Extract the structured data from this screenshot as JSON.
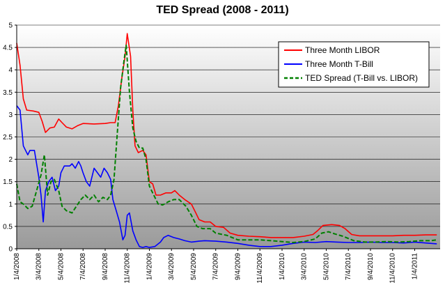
{
  "chart_data": {
    "type": "line",
    "title": "TED Spread (2008 - 2011)",
    "xlabel": "",
    "ylabel": "",
    "ylim": [
      0,
      5
    ],
    "yticks": [
      "0",
      "0.5",
      "1",
      "1.5",
      "2",
      "2.5",
      "3",
      "3.5",
      "4",
      "4.5",
      "5"
    ],
    "xticks": [
      "1/4/2008",
      "3/4/2008",
      "5/4/2008",
      "7/4/2008",
      "9/4/2008",
      "11/4/2008",
      "1/4/2009",
      "3/4/2009",
      "5/4/2009",
      "7/4/2009",
      "9/4/2009",
      "11/4/2009",
      "1/4/2010",
      "3/4/2010",
      "5/4/2010",
      "7/4/2010",
      "9/4/2010",
      "11/4/2010",
      "1/4/2011"
    ],
    "x_month_range": [
      0,
      38.3
    ],
    "grid": true,
    "legend_position": "top-right",
    "series": [
      {
        "name": "Three Month LIBOR",
        "color": "#ff0000",
        "style": "solid",
        "points": [
          [
            0.0,
            4.6
          ],
          [
            0.3,
            4.1
          ],
          [
            0.6,
            3.35
          ],
          [
            0.9,
            3.1
          ],
          [
            1.5,
            3.08
          ],
          [
            2.0,
            3.05
          ],
          [
            2.3,
            2.85
          ],
          [
            2.6,
            2.6
          ],
          [
            3.0,
            2.7
          ],
          [
            3.4,
            2.72
          ],
          [
            3.8,
            2.9
          ],
          [
            4.1,
            2.82
          ],
          [
            4.5,
            2.72
          ],
          [
            5.0,
            2.68
          ],
          [
            5.5,
            2.75
          ],
          [
            6.0,
            2.8
          ],
          [
            7.0,
            2.79
          ],
          [
            8.0,
            2.8
          ],
          [
            8.5,
            2.82
          ],
          [
            8.9,
            2.82
          ],
          [
            9.2,
            3.2
          ],
          [
            9.5,
            3.8
          ],
          [
            9.8,
            4.3
          ],
          [
            10.0,
            4.81
          ],
          [
            10.3,
            4.3
          ],
          [
            10.5,
            3.1
          ],
          [
            10.7,
            2.3
          ],
          [
            11.0,
            2.15
          ],
          [
            11.4,
            2.2
          ],
          [
            11.7,
            2.1
          ],
          [
            12.0,
            1.5
          ],
          [
            12.3,
            1.45
          ],
          [
            12.6,
            1.2
          ],
          [
            13.0,
            1.2
          ],
          [
            13.5,
            1.25
          ],
          [
            14.0,
            1.25
          ],
          [
            14.3,
            1.3
          ],
          [
            14.7,
            1.2
          ],
          [
            15.2,
            1.1
          ],
          [
            15.8,
            1.0
          ],
          [
            16.2,
            0.8
          ],
          [
            16.5,
            0.65
          ],
          [
            17.0,
            0.6
          ],
          [
            17.5,
            0.6
          ],
          [
            18.0,
            0.5
          ],
          [
            18.7,
            0.48
          ],
          [
            19.3,
            0.35
          ],
          [
            20.0,
            0.3
          ],
          [
            21.0,
            0.28
          ],
          [
            22.0,
            0.27
          ],
          [
            23.0,
            0.25
          ],
          [
            24.0,
            0.25
          ],
          [
            25.0,
            0.25
          ],
          [
            26.0,
            0.28
          ],
          [
            26.8,
            0.32
          ],
          [
            27.2,
            0.4
          ],
          [
            27.7,
            0.52
          ],
          [
            28.5,
            0.54
          ],
          [
            29.2,
            0.52
          ],
          [
            29.7,
            0.45
          ],
          [
            30.3,
            0.32
          ],
          [
            31.0,
            0.29
          ],
          [
            32.0,
            0.29
          ],
          [
            33.0,
            0.29
          ],
          [
            34.0,
            0.29
          ],
          [
            35.0,
            0.3
          ],
          [
            36.0,
            0.3
          ],
          [
            37.0,
            0.31
          ],
          [
            38.0,
            0.31
          ]
        ]
      },
      {
        "name": "Three Month T-Bill",
        "color": "#0000ff",
        "style": "solid",
        "points": [
          [
            0.0,
            3.2
          ],
          [
            0.3,
            3.1
          ],
          [
            0.6,
            2.3
          ],
          [
            0.8,
            2.2
          ],
          [
            1.0,
            2.1
          ],
          [
            1.2,
            2.2
          ],
          [
            1.6,
            2.2
          ],
          [
            2.0,
            1.6
          ],
          [
            2.2,
            1.2
          ],
          [
            2.4,
            0.6
          ],
          [
            2.6,
            1.3
          ],
          [
            2.9,
            1.5
          ],
          [
            3.2,
            1.6
          ],
          [
            3.5,
            1.3
          ],
          [
            3.8,
            1.4
          ],
          [
            4.0,
            1.7
          ],
          [
            4.3,
            1.85
          ],
          [
            4.8,
            1.85
          ],
          [
            5.0,
            1.9
          ],
          [
            5.3,
            1.8
          ],
          [
            5.6,
            1.95
          ],
          [
            5.8,
            1.85
          ],
          [
            6.0,
            1.7
          ],
          [
            6.3,
            1.5
          ],
          [
            6.6,
            1.4
          ],
          [
            7.0,
            1.8
          ],
          [
            7.3,
            1.7
          ],
          [
            7.6,
            1.6
          ],
          [
            7.9,
            1.8
          ],
          [
            8.2,
            1.7
          ],
          [
            8.5,
            1.55
          ],
          [
            8.7,
            1.1
          ],
          [
            9.0,
            0.85
          ],
          [
            9.3,
            0.6
          ],
          [
            9.6,
            0.2
          ],
          [
            9.8,
            0.3
          ],
          [
            10.0,
            0.75
          ],
          [
            10.2,
            0.8
          ],
          [
            10.5,
            0.4
          ],
          [
            10.8,
            0.2
          ],
          [
            11.1,
            0.05
          ],
          [
            11.4,
            0.03
          ],
          [
            11.7,
            0.05
          ],
          [
            12.0,
            0.03
          ],
          [
            12.5,
            0.05
          ],
          [
            13.0,
            0.15
          ],
          [
            13.3,
            0.25
          ],
          [
            13.7,
            0.3
          ],
          [
            14.2,
            0.25
          ],
          [
            14.7,
            0.22
          ],
          [
            15.2,
            0.18
          ],
          [
            15.8,
            0.15
          ],
          [
            16.5,
            0.17
          ],
          [
            17.0,
            0.18
          ],
          [
            18.0,
            0.17
          ],
          [
            19.0,
            0.15
          ],
          [
            20.0,
            0.12
          ],
          [
            21.0,
            0.08
          ],
          [
            22.0,
            0.05
          ],
          [
            23.0,
            0.05
          ],
          [
            24.0,
            0.08
          ],
          [
            25.0,
            0.12
          ],
          [
            26.0,
            0.15
          ],
          [
            27.0,
            0.14
          ],
          [
            28.0,
            0.16
          ],
          [
            29.0,
            0.15
          ],
          [
            30.0,
            0.14
          ],
          [
            31.0,
            0.14
          ],
          [
            32.0,
            0.15
          ],
          [
            33.0,
            0.14
          ],
          [
            34.0,
            0.14
          ],
          [
            35.0,
            0.13
          ],
          [
            36.0,
            0.15
          ],
          [
            37.0,
            0.13
          ],
          [
            38.0,
            0.11
          ]
        ]
      },
      {
        "name": "TED Spread (T-Bill vs. LIBOR)",
        "color": "#008000",
        "style": "dashed",
        "points": [
          [
            0.0,
            1.45
          ],
          [
            0.3,
            1.05
          ],
          [
            0.6,
            1.0
          ],
          [
            1.0,
            0.9
          ],
          [
            1.4,
            0.95
          ],
          [
            1.8,
            1.3
          ],
          [
            2.2,
            1.65
          ],
          [
            2.5,
            2.1
          ],
          [
            2.8,
            1.2
          ],
          [
            3.1,
            1.5
          ],
          [
            3.4,
            1.55
          ],
          [
            3.8,
            1.3
          ],
          [
            4.1,
            0.95
          ],
          [
            4.5,
            0.85
          ],
          [
            5.0,
            0.8
          ],
          [
            5.4,
            0.95
          ],
          [
            5.8,
            1.1
          ],
          [
            6.2,
            1.2
          ],
          [
            6.6,
            1.1
          ],
          [
            7.0,
            1.2
          ],
          [
            7.4,
            1.05
          ],
          [
            7.8,
            1.15
          ],
          [
            8.2,
            1.1
          ],
          [
            8.5,
            1.2
          ],
          [
            8.8,
            1.55
          ],
          [
            9.1,
            2.6
          ],
          [
            9.4,
            3.6
          ],
          [
            9.7,
            4.2
          ],
          [
            9.9,
            4.55
          ],
          [
            10.2,
            3.5
          ],
          [
            10.5,
            2.7
          ],
          [
            10.8,
            2.4
          ],
          [
            11.1,
            2.25
          ],
          [
            11.4,
            2.25
          ],
          [
            11.7,
            2.0
          ],
          [
            12.0,
            1.4
          ],
          [
            12.4,
            1.2
          ],
          [
            12.8,
            1.0
          ],
          [
            13.2,
            0.98
          ],
          [
            13.7,
            1.05
          ],
          [
            14.2,
            1.1
          ],
          [
            14.7,
            1.1
          ],
          [
            15.3,
            0.95
          ],
          [
            15.8,
            0.75
          ],
          [
            16.3,
            0.5
          ],
          [
            16.8,
            0.45
          ],
          [
            17.5,
            0.45
          ],
          [
            18.0,
            0.35
          ],
          [
            19.0,
            0.3
          ],
          [
            20.0,
            0.2
          ],
          [
            21.0,
            0.2
          ],
          [
            22.0,
            0.2
          ],
          [
            23.0,
            0.18
          ],
          [
            24.0,
            0.16
          ],
          [
            25.0,
            0.14
          ],
          [
            26.0,
            0.16
          ],
          [
            27.0,
            0.22
          ],
          [
            27.6,
            0.35
          ],
          [
            28.2,
            0.38
          ],
          [
            28.8,
            0.33
          ],
          [
            29.5,
            0.28
          ],
          [
            30.5,
            0.18
          ],
          [
            31.5,
            0.15
          ],
          [
            32.5,
            0.15
          ],
          [
            33.5,
            0.16
          ],
          [
            34.5,
            0.15
          ],
          [
            35.5,
            0.16
          ],
          [
            36.5,
            0.18
          ],
          [
            37.5,
            0.18
          ],
          [
            38.0,
            0.2
          ]
        ]
      }
    ]
  }
}
